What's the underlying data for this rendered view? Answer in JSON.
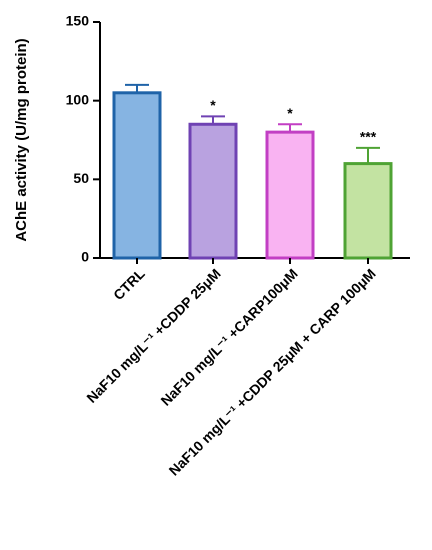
{
  "chart_data": {
    "type": "bar",
    "ylabel": "AChE activity (U/mg protein)",
    "categories": [
      "CTRL",
      "NaF10 mg/L⁻¹ +CDDP 25μM",
      "NaF10 mg/L⁻¹ +CARP100μM",
      "NaF10 mg/L⁻¹ +CDDP 25μM + CARP 100μM"
    ],
    "values": [
      105,
      85,
      80,
      60
    ],
    "errors": [
      5,
      5,
      5,
      10
    ],
    "significance": [
      null,
      "*",
      "*",
      "***"
    ],
    "fill_colors": [
      "#86b4e2",
      "#b9a2e0",
      "#f9b3f2",
      "#c3e3a2"
    ],
    "edge_colors": [
      "#1f63a8",
      "#6f42b3",
      "#c23fc4",
      "#4fa334"
    ],
    "ylim": [
      0,
      150
    ],
    "yticks": [
      0,
      50,
      100,
      150
    ],
    "grid": false
  }
}
